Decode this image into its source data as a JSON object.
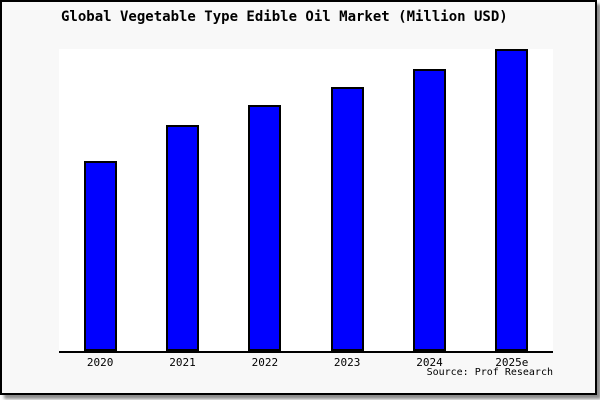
{
  "figure": {
    "background_color": "#f8f8f8",
    "plot_background_color": "#ffffff",
    "frame_border_color": "#000000",
    "shadow_color": "#8c8c8c",
    "source_label": "Source: Prof Research"
  },
  "chart_data": {
    "type": "bar",
    "title": "Global Vegetable Type Edible Oil Market (Million USD)",
    "categories": [
      "2020",
      "2021",
      "2022",
      "2023",
      "2024",
      "2025e"
    ],
    "values": [
      63,
      75,
      81.5,
      87.5,
      93.5,
      100
    ],
    "ylim": [
      0,
      100
    ],
    "xlabel": "",
    "ylabel": "",
    "grid": false,
    "legend": false,
    "y_axis_visible": false,
    "bar_color": "#0000ff",
    "bar_border_color": "#000000"
  }
}
